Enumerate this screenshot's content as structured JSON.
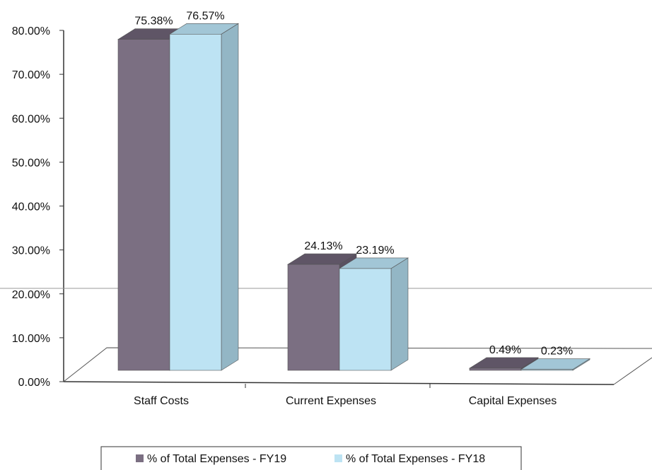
{
  "chart_data": {
    "type": "bar",
    "categories": [
      "Staff Costs",
      "Current Expenses",
      "Capital Expenses"
    ],
    "series": [
      {
        "name": "% of Total Expenses - FY19",
        "values": [
          75.38,
          24.13,
          0.49
        ],
        "labels": [
          "75.38%",
          "24.13%",
          "0.49%"
        ]
      },
      {
        "name": "% of Total Expenses - FY18",
        "values": [
          76.57,
          23.19,
          0.23
        ],
        "labels": [
          "76.57%",
          "23.19%",
          "0.23%"
        ]
      }
    ],
    "y_ticks": [
      "0.00%",
      "10.00%",
      "20.00%",
      "30.00%",
      "40.00%",
      "50.00%",
      "60.00%",
      "70.00%",
      "80.00%"
    ],
    "ylim": [
      0,
      80
    ],
    "grid": false,
    "legend_position": "bottom",
    "three_d": true
  },
  "colors": {
    "fy19_front": "#7b6f82",
    "fy19_top": "#5f5566",
    "fy19_side": "#5a5061",
    "fy18_front": "#bde3f3",
    "fy18_top": "#a2c6d6",
    "fy18_side": "#93b6c5",
    "axis": "#333333"
  }
}
